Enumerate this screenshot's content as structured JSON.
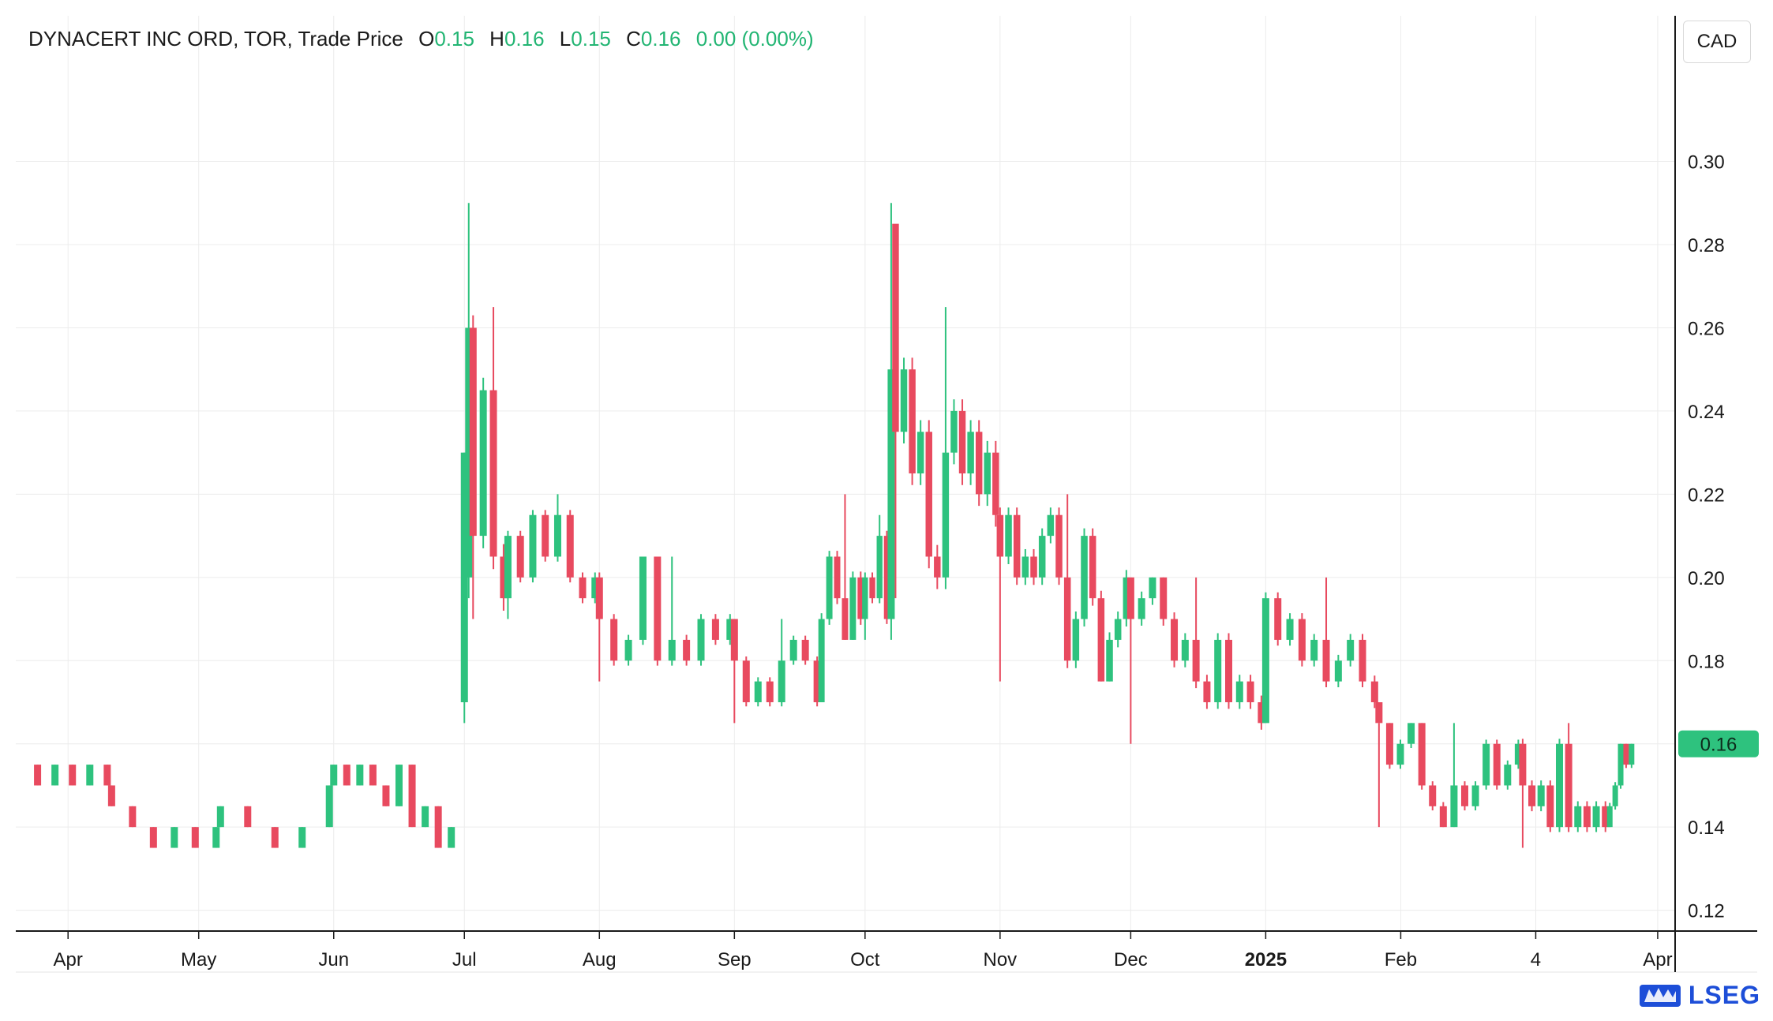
{
  "header": {
    "instrument": "DYNACERT INC ORD, TOR, Trade Price",
    "ohlc": [
      {
        "label": "O",
        "value": "0.15"
      },
      {
        "label": "H",
        "value": "0.16"
      },
      {
        "label": "L",
        "value": "0.15"
      },
      {
        "label": "C",
        "value": "0.16"
      }
    ],
    "change": "0.00 (0.00%)"
  },
  "currency_button": "CAD",
  "brand": {
    "name": "LSEG",
    "icon": "lion-logo-icon"
  },
  "colors": {
    "up": "#2ec27e",
    "down": "#e84a5f",
    "grid": "#ececec",
    "axis": "#1a1a1a",
    "last_price_badge": "#2ec27e"
  },
  "chart_data": {
    "type": "candlestick",
    "ylim": [
      0.115,
      0.335
    ],
    "y_ticks": [
      "0.12",
      "0.14",
      "0.16",
      "0.18",
      "0.20",
      "0.22",
      "0.24",
      "0.26",
      "0.28",
      "0.30"
    ],
    "x_ticks": [
      {
        "label": "Apr",
        "date": "2024-04-01",
        "bold": false
      },
      {
        "label": "May",
        "date": "2024-05-01",
        "bold": false
      },
      {
        "label": "Jun",
        "date": "2024-06-01",
        "bold": false
      },
      {
        "label": "Jul",
        "date": "2024-07-01",
        "bold": false
      },
      {
        "label": "Aug",
        "date": "2024-08-01",
        "bold": false
      },
      {
        "label": "Sep",
        "date": "2024-09-01",
        "bold": false
      },
      {
        "label": "Oct",
        "date": "2024-10-01",
        "bold": false
      },
      {
        "label": "Nov",
        "date": "2024-11-01",
        "bold": false
      },
      {
        "label": "Dec",
        "date": "2024-12-01",
        "bold": false
      },
      {
        "label": "2025",
        "date": "2025-01-01",
        "bold": true
      },
      {
        "label": "Feb",
        "date": "2025-02-01",
        "bold": false
      },
      {
        "label": "4",
        "date": "2025-03-04",
        "bold": false
      },
      {
        "label": "Apr",
        "date": "2025-04-01",
        "bold": false
      }
    ],
    "last_price": "0.16",
    "segments": [
      {
        "from": "2024-03-25",
        "to": "2024-04-10",
        "path": [
          [
            0.155,
            0.15
          ],
          [
            0.15,
            0.155
          ],
          [
            0.155,
            0.15
          ],
          [
            0.15,
            0.155
          ],
          [
            0.155,
            0.15
          ]
        ]
      },
      {
        "from": "2024-04-11",
        "to": "2024-05-05",
        "path": [
          [
            0.15,
            0.145
          ],
          [
            0.145,
            0.14
          ],
          [
            0.14,
            0.135
          ],
          [
            0.135,
            0.14
          ],
          [
            0.14,
            0.135
          ],
          [
            0.135,
            0.14
          ]
        ]
      },
      {
        "from": "2024-05-06",
        "to": "2024-05-31",
        "path": [
          [
            0.14,
            0.145
          ],
          [
            0.145,
            0.14
          ],
          [
            0.14,
            0.135
          ],
          [
            0.135,
            0.14
          ],
          [
            0.14,
            0.15
          ]
        ]
      },
      {
        "from": "2024-06-01",
        "to": "2024-06-28",
        "path": [
          [
            0.15,
            0.155
          ],
          [
            0.155,
            0.15
          ],
          [
            0.15,
            0.155
          ],
          [
            0.155,
            0.15
          ],
          [
            0.15,
            0.145
          ],
          [
            0.145,
            0.155
          ],
          [
            0.155,
            0.14
          ],
          [
            0.14,
            0.145
          ],
          [
            0.145,
            0.135
          ],
          [
            0.135,
            0.14
          ]
        ]
      },
      {
        "from": "2024-07-01",
        "to": "2024-07-01",
        "path": [
          [
            0.17,
            0.23
          ]
        ],
        "wick": [
          0.165,
          0.23
        ]
      },
      {
        "from": "2024-07-02",
        "to": "2024-07-02",
        "path": [
          [
            0.2,
            0.26
          ]
        ],
        "wick": [
          0.195,
          0.29
        ]
      },
      {
        "from": "2024-07-03",
        "to": "2024-07-10",
        "path": [
          [
            0.26,
            0.21
          ],
          [
            0.21,
            0.245
          ],
          [
            0.245,
            0.205
          ],
          [
            0.205,
            0.195
          ]
        ],
        "wick": [
          0.19,
          0.265
        ]
      },
      {
        "from": "2024-07-11",
        "to": "2024-07-31",
        "path": [
          [
            0.195,
            0.21
          ],
          [
            0.21,
            0.2
          ],
          [
            0.2,
            0.215
          ],
          [
            0.215,
            0.205
          ],
          [
            0.205,
            0.215
          ],
          [
            0.215,
            0.2
          ],
          [
            0.2,
            0.195
          ],
          [
            0.195,
            0.2
          ]
        ],
        "wick": [
          0.19,
          0.22
        ]
      },
      {
        "from": "2024-08-01",
        "to": "2024-08-31",
        "path": [
          [
            0.2,
            0.19
          ],
          [
            0.19,
            0.18
          ],
          [
            0.18,
            0.185
          ],
          [
            0.185,
            0.205
          ],
          [
            0.205,
            0.18
          ],
          [
            0.18,
            0.185
          ],
          [
            0.185,
            0.18
          ],
          [
            0.18,
            0.19
          ],
          [
            0.19,
            0.185
          ],
          [
            0.185,
            0.19
          ]
        ],
        "wick": [
          0.175,
          0.205
        ]
      },
      {
        "from": "2024-09-01",
        "to": "2024-09-20",
        "path": [
          [
            0.19,
            0.18
          ],
          [
            0.18,
            0.17
          ],
          [
            0.17,
            0.175
          ],
          [
            0.175,
            0.17
          ],
          [
            0.17,
            0.18
          ],
          [
            0.18,
            0.185
          ],
          [
            0.185,
            0.18
          ],
          [
            0.18,
            0.17
          ]
        ],
        "wick": [
          0.165,
          0.19
        ]
      },
      {
        "from": "2024-09-21",
        "to": "2024-09-30",
        "path": [
          [
            0.17,
            0.19
          ],
          [
            0.19,
            0.205
          ],
          [
            0.205,
            0.195
          ],
          [
            0.195,
            0.185
          ],
          [
            0.185,
            0.2
          ],
          [
            0.2,
            0.19
          ]
        ],
        "wick": [
          0.185,
          0.22
        ]
      },
      {
        "from": "2024-10-01",
        "to": "2024-10-06",
        "path": [
          [
            0.19,
            0.2
          ],
          [
            0.2,
            0.195
          ],
          [
            0.195,
            0.21
          ],
          [
            0.21,
            0.19
          ]
        ],
        "wick": [
          0.185,
          0.215
        ]
      },
      {
        "from": "2024-10-07",
        "to": "2024-10-07",
        "path": [
          [
            0.19,
            0.25
          ]
        ],
        "wick": [
          0.185,
          0.29
        ]
      },
      {
        "from": "2024-10-08",
        "to": "2024-10-31",
        "path": [
          [
            0.285,
            0.235
          ],
          [
            0.235,
            0.25
          ],
          [
            0.25,
            0.225
          ],
          [
            0.225,
            0.235
          ],
          [
            0.235,
            0.205
          ],
          [
            0.205,
            0.2
          ],
          [
            0.2,
            0.23
          ],
          [
            0.23,
            0.24
          ],
          [
            0.24,
            0.225
          ],
          [
            0.225,
            0.235
          ],
          [
            0.235,
            0.22
          ],
          [
            0.22,
            0.23
          ],
          [
            0.23,
            0.215
          ]
        ],
        "wick": [
          0.195,
          0.265
        ]
      },
      {
        "from": "2024-11-01",
        "to": "2024-11-30",
        "path": [
          [
            0.215,
            0.205
          ],
          [
            0.205,
            0.215
          ],
          [
            0.215,
            0.2
          ],
          [
            0.2,
            0.205
          ],
          [
            0.205,
            0.2
          ],
          [
            0.2,
            0.21
          ],
          [
            0.21,
            0.215
          ],
          [
            0.215,
            0.2
          ],
          [
            0.2,
            0.18
          ],
          [
            0.18,
            0.19
          ],
          [
            0.19,
            0.21
          ],
          [
            0.21,
            0.195
          ],
          [
            0.195,
            0.175
          ],
          [
            0.175,
            0.185
          ],
          [
            0.185,
            0.19
          ],
          [
            0.19,
            0.2
          ]
        ],
        "wick": [
          0.175,
          0.22
        ]
      },
      {
        "from": "2024-12-01",
        "to": "2024-12-31",
        "path": [
          [
            0.2,
            0.19
          ],
          [
            0.19,
            0.195
          ],
          [
            0.195,
            0.2
          ],
          [
            0.2,
            0.19
          ],
          [
            0.19,
            0.18
          ],
          [
            0.18,
            0.185
          ],
          [
            0.185,
            0.175
          ],
          [
            0.175,
            0.17
          ],
          [
            0.17,
            0.185
          ],
          [
            0.185,
            0.17
          ],
          [
            0.17,
            0.175
          ],
          [
            0.175,
            0.17
          ],
          [
            0.17,
            0.165
          ]
        ],
        "wick": [
          0.16,
          0.2
        ]
      },
      {
        "from": "2025-01-01",
        "to": "2025-01-26",
        "path": [
          [
            0.165,
            0.195
          ],
          [
            0.195,
            0.185
          ],
          [
            0.185,
            0.19
          ],
          [
            0.19,
            0.18
          ],
          [
            0.18,
            0.185
          ],
          [
            0.185,
            0.175
          ],
          [
            0.175,
            0.18
          ],
          [
            0.18,
            0.185
          ],
          [
            0.185,
            0.175
          ],
          [
            0.175,
            0.17
          ]
        ],
        "wick": [
          0.165,
          0.2
        ]
      },
      {
        "from": "2025-01-27",
        "to": "2025-02-28",
        "path": [
          [
            0.17,
            0.165
          ],
          [
            0.165,
            0.155
          ],
          [
            0.155,
            0.16
          ],
          [
            0.16,
            0.165
          ],
          [
            0.165,
            0.15
          ],
          [
            0.15,
            0.145
          ],
          [
            0.145,
            0.14
          ],
          [
            0.14,
            0.15
          ],
          [
            0.15,
            0.145
          ],
          [
            0.145,
            0.15
          ],
          [
            0.15,
            0.16
          ],
          [
            0.16,
            0.15
          ],
          [
            0.15,
            0.155
          ],
          [
            0.155,
            0.16
          ]
        ],
        "wick": [
          0.14,
          0.165
        ]
      },
      {
        "from": "2025-03-01",
        "to": "2025-03-20",
        "path": [
          [
            0.16,
            0.15
          ],
          [
            0.15,
            0.145
          ],
          [
            0.145,
            0.15
          ],
          [
            0.15,
            0.14
          ],
          [
            0.14,
            0.16
          ],
          [
            0.16,
            0.14
          ],
          [
            0.14,
            0.145
          ],
          [
            0.145,
            0.14
          ],
          [
            0.14,
            0.145
          ],
          [
            0.145,
            0.14
          ]
        ],
        "wick": [
          0.135,
          0.165
        ]
      },
      {
        "from": "2025-03-21",
        "to": "2025-03-26",
        "path": [
          [
            0.14,
            0.145
          ],
          [
            0.145,
            0.15
          ],
          [
            0.15,
            0.16
          ],
          [
            0.16,
            0.155
          ],
          [
            0.155,
            0.16
          ]
        ],
        "wick": [
          0.14,
          0.16
        ]
      }
    ]
  }
}
